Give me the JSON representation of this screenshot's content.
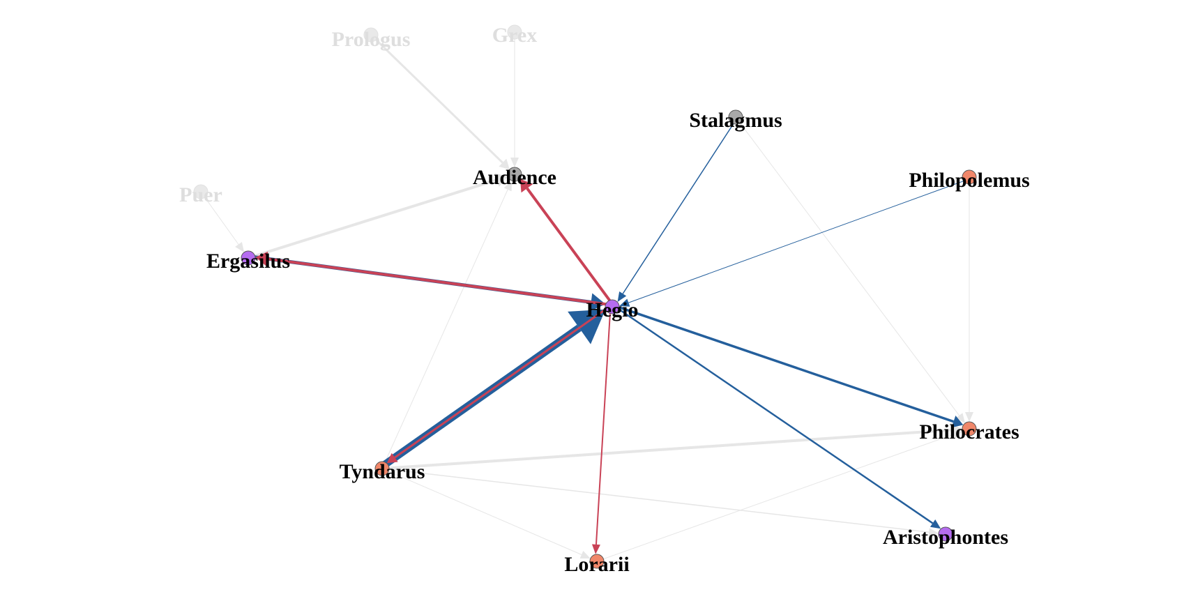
{
  "colors": {
    "active_edge_blue": "#245f9c",
    "active_edge_red": "#c94256",
    "faded_edge": "#e6e6e6",
    "node_purple": "#b56cf0",
    "node_orange": "#f0876a",
    "node_gray": "#a9a9a9",
    "faded_node": "#e9e9e9"
  },
  "nodes": [
    {
      "id": "prologus",
      "label": "Prologus",
      "kind": "faded"
    },
    {
      "id": "grex",
      "label": "Grex",
      "kind": "faded"
    },
    {
      "id": "puer",
      "label": "Puer",
      "kind": "faded"
    },
    {
      "id": "stalagmus",
      "label": "Stalagmus",
      "kind": "gray"
    },
    {
      "id": "audience",
      "label": "Audience",
      "kind": "gray"
    },
    {
      "id": "philopolemus",
      "label": "Philopolemus",
      "kind": "orange"
    },
    {
      "id": "ergasilus",
      "label": "Ergasilus",
      "kind": "purple"
    },
    {
      "id": "hegio",
      "label": "Hegio",
      "kind": "purple"
    },
    {
      "id": "philocrates",
      "label": "Philocrates",
      "kind": "orange"
    },
    {
      "id": "tyndarus",
      "label": "Tyndarus",
      "kind": "orange"
    },
    {
      "id": "aristophontes",
      "label": "Aristophontes",
      "kind": "purple"
    },
    {
      "id": "lorarii",
      "label": "Lorarii",
      "kind": "orange"
    }
  ],
  "edges": [
    {
      "source": "prologus",
      "target": "audience",
      "weight": 3,
      "style": "faded"
    },
    {
      "source": "grex",
      "target": "audience",
      "weight": 1,
      "style": "faded"
    },
    {
      "source": "puer",
      "target": "ergasilus",
      "weight": 1,
      "style": "faded"
    },
    {
      "source": "ergasilus",
      "target": "audience",
      "weight": 4,
      "style": "faded"
    },
    {
      "source": "tyndarus",
      "target": "audience",
      "weight": 1,
      "style": "faded"
    },
    {
      "source": "tyndarus",
      "target": "philocrates",
      "weight": 4,
      "style": "faded"
    },
    {
      "source": "tyndarus",
      "target": "aristophontes",
      "weight": 1.5,
      "style": "faded"
    },
    {
      "source": "tyndarus",
      "target": "lorarii",
      "weight": 1,
      "style": "faded"
    },
    {
      "source": "lorarii",
      "target": "philocrates",
      "weight": 1,
      "style": "faded"
    },
    {
      "source": "stalagmus",
      "target": "philocrates",
      "weight": 1,
      "style": "faded"
    },
    {
      "source": "philopolemus",
      "target": "philocrates",
      "weight": 1,
      "style": "faded"
    },
    {
      "source": "hegio",
      "target": "audience",
      "weight": 4,
      "style": "red"
    },
    {
      "source": "ergasilus",
      "target": "hegio",
      "weight": 5,
      "style": "blue"
    },
    {
      "source": "hegio",
      "target": "ergasilus",
      "weight": 4,
      "style": "red"
    },
    {
      "source": "tyndarus",
      "target": "hegio",
      "weight": 11,
      "style": "blue"
    },
    {
      "source": "hegio",
      "target": "tyndarus",
      "weight": 3,
      "style": "red"
    },
    {
      "source": "stalagmus",
      "target": "hegio",
      "weight": 1.5,
      "style": "blue"
    },
    {
      "source": "philopolemus",
      "target": "hegio",
      "weight": 1,
      "style": "blue"
    },
    {
      "source": "hegio",
      "target": "philocrates",
      "weight": 3.5,
      "style": "blue"
    },
    {
      "source": "hegio",
      "target": "aristophontes",
      "weight": 2.5,
      "style": "blue"
    },
    {
      "source": "hegio",
      "target": "lorarii",
      "weight": 2,
      "style": "red"
    }
  ]
}
